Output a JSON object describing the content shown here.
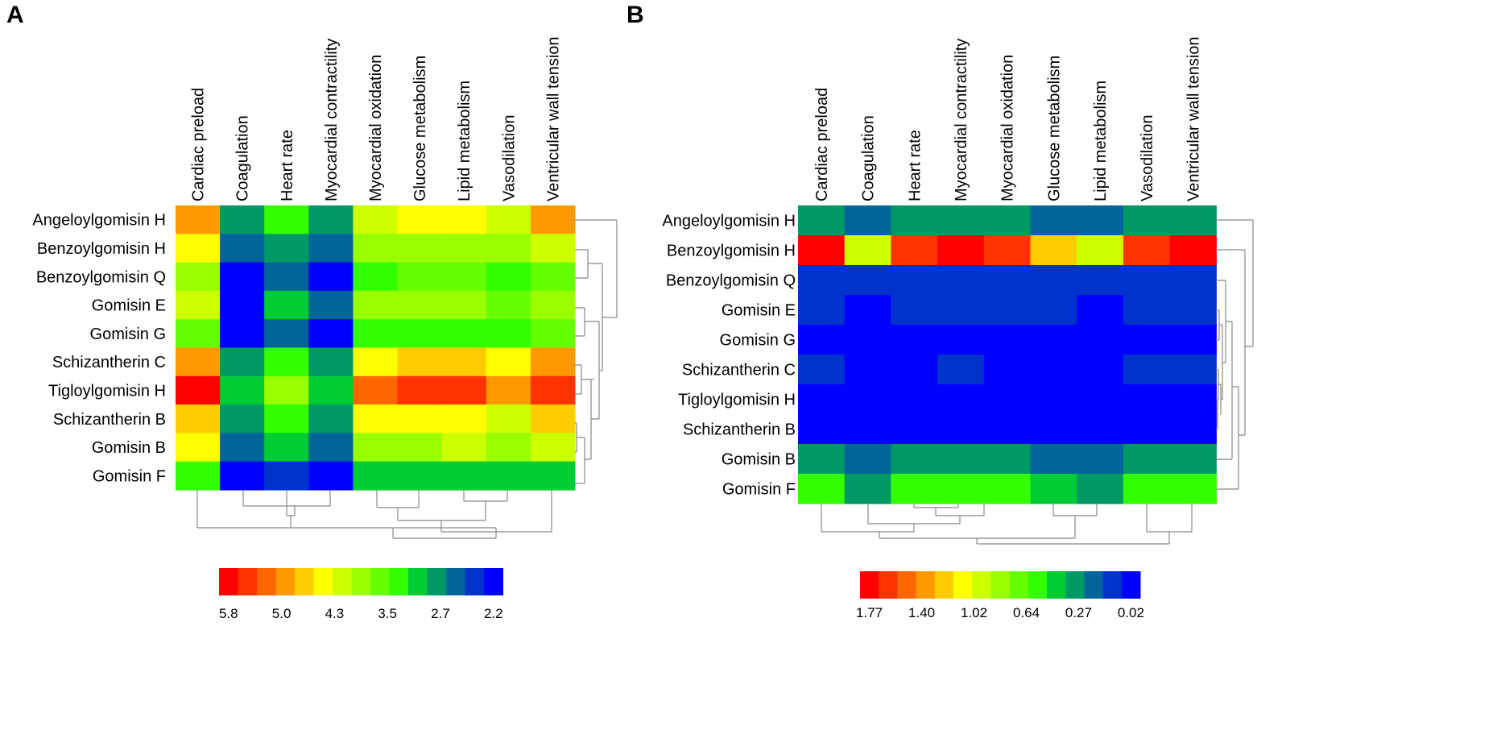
{
  "palette": [
    "#ff0000",
    "#ff3300",
    "#ff6600",
    "#ff9900",
    "#ffcc00",
    "#ffff00",
    "#ccff00",
    "#99ff00",
    "#66ff00",
    "#33ff00",
    "#00cc33",
    "#009966",
    "#006699",
    "#0033cc",
    "#0000ff"
  ],
  "chart_data": [
    {
      "type": "heatmap",
      "panel": "A",
      "columns": [
        "Cardiac preload",
        "Coagulation",
        "Heart rate",
        "Myocardial contractility",
        "Myocardial oxidation",
        "Glucose metabolism",
        "Lipid metabolism",
        "Vasodilation",
        "Ventricular wall tension"
      ],
      "rows": [
        "Angeloylgomisin H",
        "Benzoylgomisin H",
        "Benzoylgomisin Q",
        "Gomisin E",
        "Gomisin G",
        "Schizantherin C",
        "Tigloylgomisin H",
        "Schizantherin B",
        "Gomisin B",
        "Gomisin F"
      ],
      "color_index": [
        [
          3,
          11,
          9,
          11,
          6,
          5,
          5,
          6,
          3
        ],
        [
          5,
          12,
          11,
          12,
          7,
          7,
          7,
          7,
          6
        ],
        [
          7,
          14,
          12,
          14,
          9,
          8,
          8,
          9,
          8
        ],
        [
          6,
          14,
          10,
          12,
          7,
          7,
          7,
          8,
          7
        ],
        [
          8,
          14,
          12,
          14,
          9,
          9,
          9,
          9,
          8
        ],
        [
          3,
          11,
          9,
          11,
          5,
          4,
          4,
          5,
          3
        ],
        [
          0,
          10,
          7,
          10,
          2,
          1,
          1,
          3,
          1
        ],
        [
          4,
          11,
          9,
          11,
          5,
          5,
          5,
          6,
          4
        ],
        [
          5,
          12,
          10,
          12,
          7,
          7,
          6,
          7,
          6
        ],
        [
          9,
          14,
          13,
          14,
          10,
          10,
          10,
          10,
          10
        ]
      ],
      "legend": {
        "labels": [
          "5.8",
          "5.0",
          "4.3",
          "3.5",
          "2.7",
          "2.2"
        ],
        "min": 2.2,
        "max": 5.8,
        "steps": 15
      }
    },
    {
      "type": "heatmap",
      "panel": "B",
      "columns": [
        "Cardiac preload",
        "Coagulation",
        "Heart rate",
        "Myocardial contractility",
        "Myocardial oxidation",
        "Glucose metabolism",
        "Lipid metabolism",
        "Vasodilation",
        "Ventricular wall tension"
      ],
      "rows": [
        "Angeloylgomisin H",
        "Benzoylgomisin H",
        "Benzoylgomisin Q",
        "Gomisin E",
        "Gomisin G",
        "Schizantherin C",
        "Tigloylgomisin H",
        "Schizantherin B",
        "Gomisin B",
        "Gomisin F"
      ],
      "color_index": [
        [
          11,
          12,
          11,
          11,
          11,
          12,
          12,
          11,
          11
        ],
        [
          0,
          6,
          1,
          0,
          1,
          4,
          6,
          1,
          0
        ],
        [
          13,
          13,
          13,
          13,
          13,
          13,
          13,
          13,
          13
        ],
        [
          13,
          14,
          13,
          13,
          13,
          13,
          14,
          13,
          13
        ],
        [
          14,
          14,
          14,
          14,
          14,
          14,
          14,
          14,
          14
        ],
        [
          13,
          14,
          14,
          13,
          14,
          14,
          14,
          13,
          13
        ],
        [
          14,
          14,
          14,
          14,
          14,
          14,
          14,
          14,
          14
        ],
        [
          14,
          14,
          14,
          14,
          14,
          14,
          14,
          14,
          14
        ],
        [
          11,
          12,
          11,
          11,
          11,
          12,
          12,
          11,
          11
        ],
        [
          9,
          11,
          9,
          9,
          9,
          10,
          11,
          9,
          9
        ]
      ],
      "legend": {
        "labels": [
          "1.77",
          "1.40",
          "1.02",
          "0.64",
          "0.27",
          "0.02"
        ],
        "min": 0.02,
        "max": 1.77,
        "steps": 15
      }
    }
  ]
}
